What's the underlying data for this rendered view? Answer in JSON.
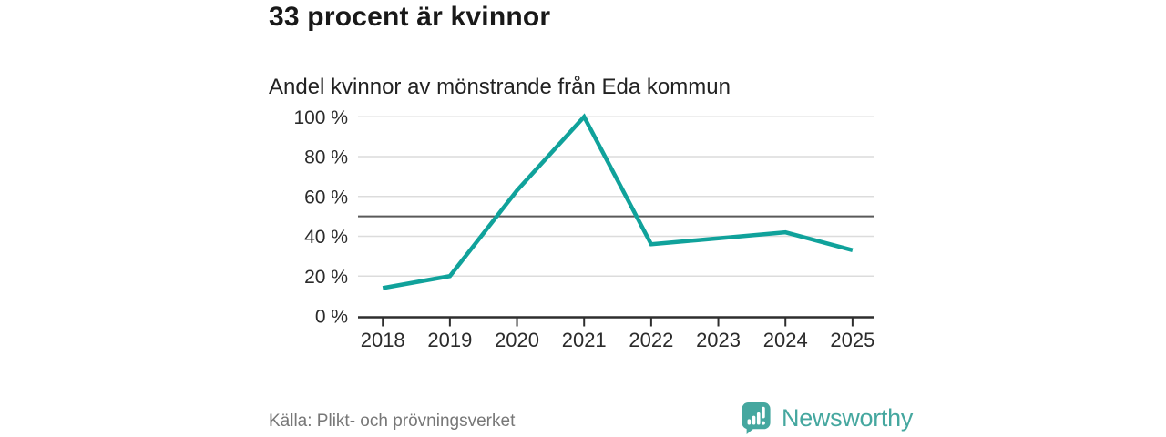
{
  "header": {
    "title": "33 procent är kvinnor"
  },
  "chart_data": {
    "type": "line",
    "title": "Andel kvinnor av mönstrande från Eda kommun",
    "x": [
      "2018",
      "2019",
      "2020",
      "2021",
      "2022",
      "2023",
      "2024",
      "2025"
    ],
    "series": [
      {
        "name": "Andel kvinnor",
        "values": [
          14,
          20,
          63,
          100,
          36,
          39,
          42,
          33
        ]
      }
    ],
    "unit": "%",
    "xlabel": "",
    "ylabel": "",
    "ylim": [
      0,
      100
    ],
    "grid": true,
    "legend_position": "none",
    "yticks": [
      {
        "value": 0,
        "label": "0 %"
      },
      {
        "value": 20,
        "label": "20 %"
      },
      {
        "value": 40,
        "label": "40 %"
      },
      {
        "value": 60,
        "label": "60 %"
      },
      {
        "value": 80,
        "label": "80 %"
      },
      {
        "value": 100,
        "label": "100 %"
      }
    ],
    "reference_line": {
      "value": 50,
      "color": "#595959"
    },
    "line_color": "#10a29b",
    "grid_color": "#dcdcdc",
    "axis_color": "#2e2e2e",
    "text_color": "#2b2b2b"
  },
  "footer": {
    "source": "Källa: Plikt- och prövningsverket",
    "brand": "Newsworthy",
    "brand_color": "#45a79f"
  }
}
